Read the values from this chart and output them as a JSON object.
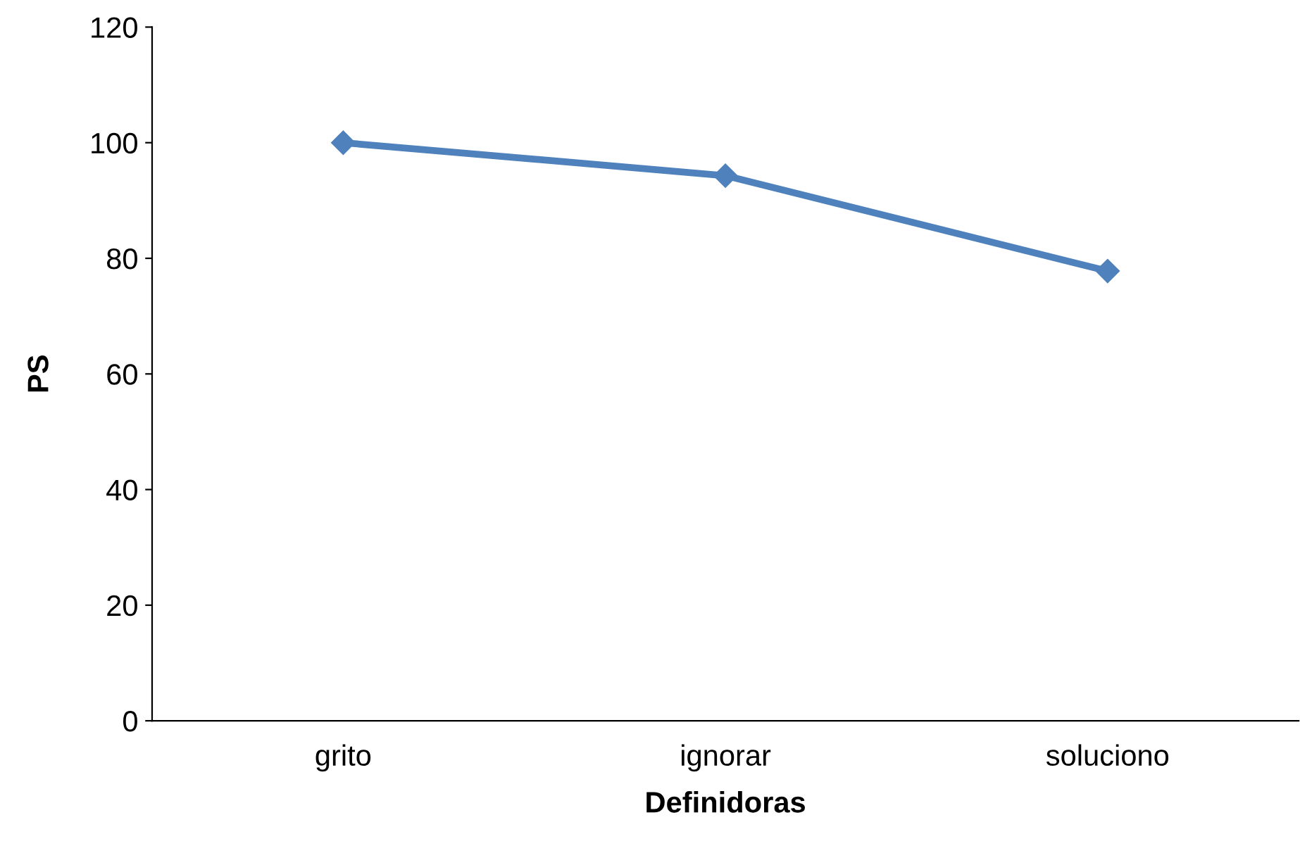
{
  "chart_data": {
    "type": "line",
    "xlabel": "Definidoras",
    "ylabel": "PS",
    "categories": [
      "grito",
      "ignorar",
      "soluciono"
    ],
    "series": [
      {
        "color": "#4f81bd",
        "values": [
          100,
          94.3,
          77.8
        ]
      }
    ],
    "ylim": [
      0,
      120
    ],
    "yticks": [
      0,
      20,
      40,
      60,
      80,
      100,
      120
    ],
    "grid": false,
    "legend": false,
    "marker": "diamond",
    "line_style": "solid"
  }
}
